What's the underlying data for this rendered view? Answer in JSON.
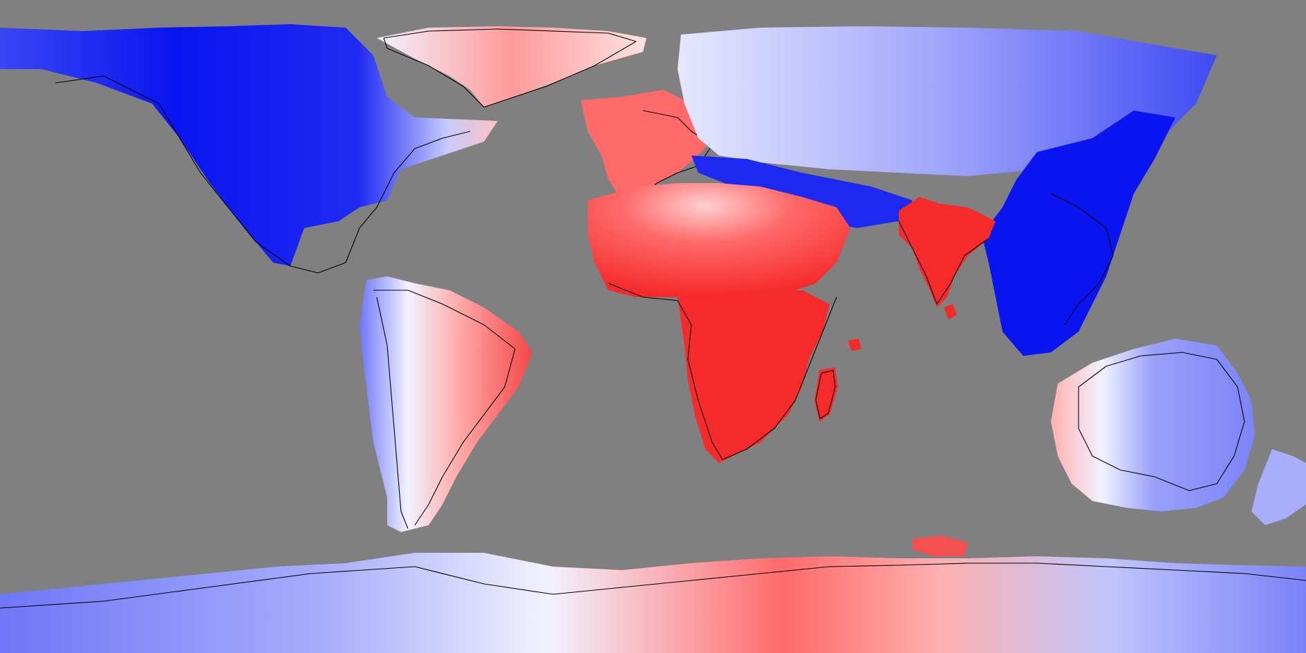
{
  "map": {
    "projection": "equirectangular",
    "background_color": "#808080",
    "colors": {
      "strong_blue": "#0a14f0",
      "mid_blue": "#4a55f5",
      "light_blue": "#b4b9fb",
      "white": "#f2f2ff",
      "light_red": "#ffb8b8",
      "mid_red": "#ff6a6a",
      "strong_red": "#f52a2a",
      "coastline": "#000000"
    },
    "diverging_scale": "blue-white-red",
    "regions": [
      {
        "name": "north-america",
        "tone": "strong_blue"
      },
      {
        "name": "greenland",
        "tone": "light_red"
      },
      {
        "name": "europe",
        "tone": "mid_red"
      },
      {
        "name": "northern-eurasia",
        "tone": "light_blue"
      },
      {
        "name": "central-asia",
        "tone": "mid_blue"
      },
      {
        "name": "east-asia",
        "tone": "strong_blue"
      },
      {
        "name": "south-asia",
        "tone": "strong_red"
      },
      {
        "name": "north-africa",
        "tone": "mid_red"
      },
      {
        "name": "africa",
        "tone": "strong_red"
      },
      {
        "name": "madagascar",
        "tone": "strong_red"
      },
      {
        "name": "south-america-west",
        "tone": "light_blue"
      },
      {
        "name": "south-america-east",
        "tone": "mid_red"
      },
      {
        "name": "australia-west",
        "tone": "light_red"
      },
      {
        "name": "australia-east",
        "tone": "light_blue"
      },
      {
        "name": "new-zealand",
        "tone": "light_blue"
      },
      {
        "name": "antarctica-west",
        "tone": "mid_blue"
      },
      {
        "name": "antarctica-east",
        "tone": "light_red"
      }
    ]
  }
}
